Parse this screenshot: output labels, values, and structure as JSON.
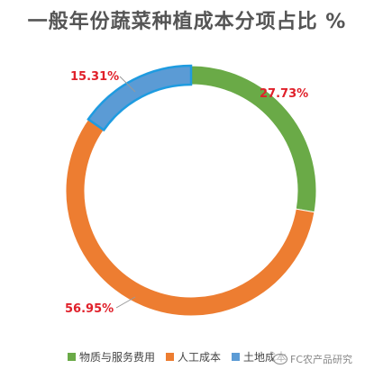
{
  "chart_data": {
    "type": "pie",
    "title": "一般年份蔬菜种植成本分项占比 %",
    "series": [
      {
        "name": "物质与服务费用",
        "value": 27.73,
        "label": "27.73%",
        "color": "#6aaa47"
      },
      {
        "name": "人工成本",
        "value": 56.95,
        "label": "56.95%",
        "color": "#ed7d31"
      },
      {
        "name": "土地成本",
        "value": 15.31,
        "label": "15.31%",
        "color": "#5b9bd5"
      }
    ],
    "legend_position": "bottom"
  },
  "watermark": {
    "text": "FC农产品研究"
  }
}
